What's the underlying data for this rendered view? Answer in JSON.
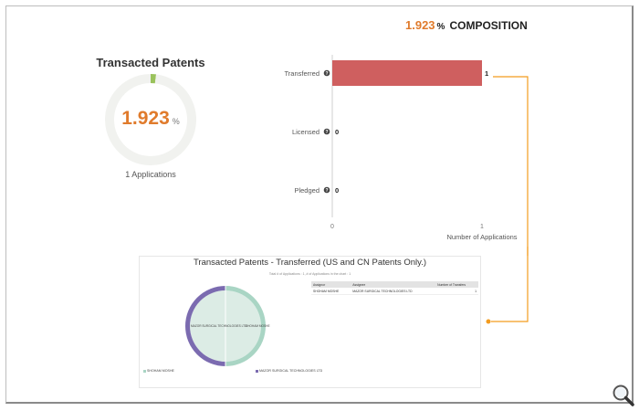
{
  "composition": {
    "percent": "1.923",
    "percent_sign": "%",
    "label": "COMPOSITION"
  },
  "left": {
    "title": "Transacted Patents",
    "percent": "1.923",
    "percent_sign": "%",
    "apps_label": "1 Applications"
  },
  "chart_data": [
    {
      "type": "pie",
      "subtype": "donut",
      "title": "Transacted Patents",
      "values": [
        1.923,
        98.077
      ],
      "colors": [
        "#9ac25c",
        "#f1f2ef"
      ],
      "center_value": "1.923"
    },
    {
      "type": "bar",
      "orientation": "horizontal",
      "categories": [
        "Transferred",
        "Licensed",
        "Pledged"
      ],
      "values": [
        1,
        0,
        0
      ],
      "value_labels": [
        "1",
        "0",
        "0"
      ],
      "xlim": [
        0,
        1
      ],
      "xticks": [
        "0",
        "1"
      ],
      "xlabel": "Number of Applications",
      "bar_color": "#cf5f5f",
      "help_icon": "?",
      "grid": false
    },
    {
      "type": "pie",
      "subtype": "donut",
      "title": "Transacted Patents - Transferred (US and CN Patents Only.)",
      "subtitle": "Total # of Applications : 1, # of Applications in the chart : 1",
      "labels": [
        "SHOHAM MOSHE",
        "MAZOR SURGICAL TECHNOLOGIES LTD"
      ],
      "values": [
        50,
        50
      ],
      "colors": [
        "#a9d5c4",
        "#7b6bb0"
      ],
      "slice_labels": [
        "SHOHAM MOSHE",
        "MAZOR SURGICAL TECHNOLOGIES LTD"
      ],
      "legend": [
        {
          "label": "SHOHAM MOSHE",
          "color": "#a9d5c4"
        },
        {
          "label": "MAZOR SURGICAL TECHNOLOGIES LTD",
          "color": "#7b6bb0"
        }
      ],
      "legend_position": "bottom"
    }
  ],
  "table": {
    "headers": [
      "Assignor",
      "Assignee",
      "Number of Transfers"
    ],
    "rows": [
      [
        "SHOHAM MOSHE",
        "MAZOR SURGICAL TECHNOLOGIES LTD",
        "1"
      ]
    ]
  },
  "icons": {
    "zoom": "magnifier-icon",
    "help": "question-icon"
  },
  "colors": {
    "accent": "#e07b2c",
    "connector": "#f39c1f"
  }
}
